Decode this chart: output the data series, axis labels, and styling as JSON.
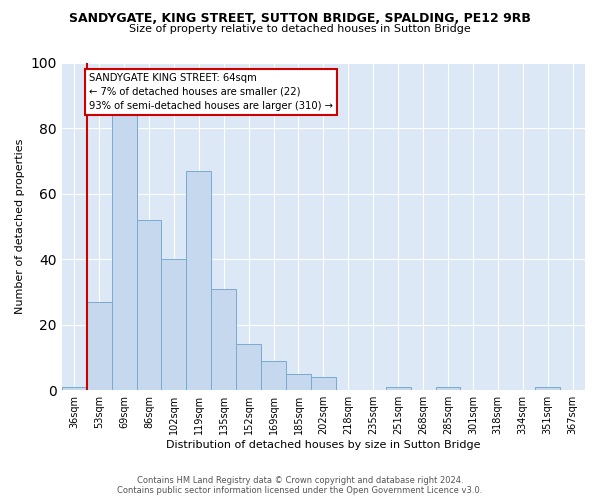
{
  "title": "SANDYGATE, KING STREET, SUTTON BRIDGE, SPALDING, PE12 9RB",
  "subtitle": "Size of property relative to detached houses in Sutton Bridge",
  "xlabel": "Distribution of detached houses by size in Sutton Bridge",
  "ylabel": "Number of detached properties",
  "categories": [
    "36sqm",
    "53sqm",
    "69sqm",
    "86sqm",
    "102sqm",
    "119sqm",
    "135sqm",
    "152sqm",
    "169sqm",
    "185sqm",
    "202sqm",
    "218sqm",
    "235sqm",
    "251sqm",
    "268sqm",
    "285sqm",
    "301sqm",
    "318sqm",
    "334sqm",
    "351sqm",
    "367sqm"
  ],
  "values": [
    1,
    27,
    84,
    52,
    40,
    67,
    31,
    14,
    9,
    5,
    4,
    0,
    0,
    1,
    0,
    1,
    0,
    0,
    0,
    1,
    0
  ],
  "bar_color": "#c5d8ee",
  "bar_edge_color": "#7aaad0",
  "highlight_index": 1,
  "highlight_line_color": "#cc0000",
  "annotation_text": "SANDYGATE KING STREET: 64sqm\n← 7% of detached houses are smaller (22)\n93% of semi-detached houses are larger (310) →",
  "annotation_box_color": "#ffffff",
  "annotation_box_edge_color": "#cc0000",
  "ylim": [
    0,
    100
  ],
  "yticks": [
    0,
    20,
    40,
    60,
    80,
    100
  ],
  "footer_line1": "Contains HM Land Registry data © Crown copyright and database right 2024.",
  "footer_line2": "Contains public sector information licensed under the Open Government Licence v3.0.",
  "bg_color": "#dce8f5",
  "fig_bg_color": "#ffffff"
}
